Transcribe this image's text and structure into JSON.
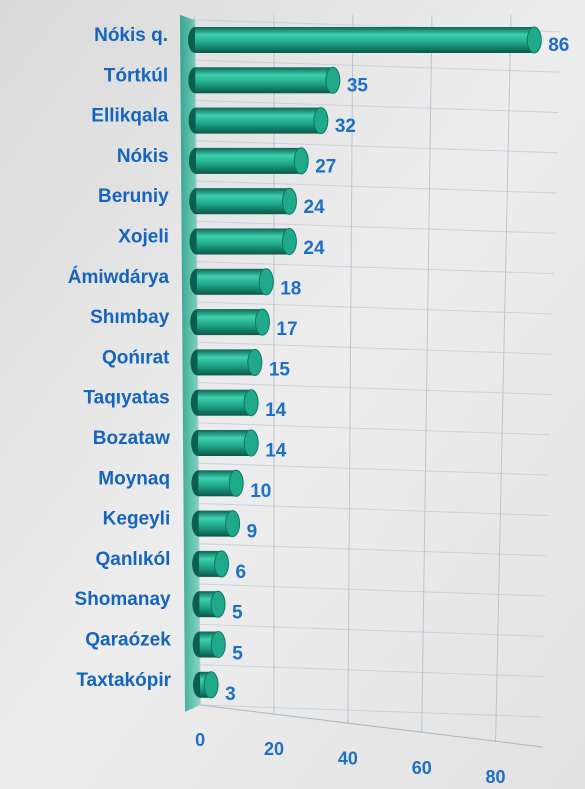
{
  "chart_data": {
    "type": "bar",
    "orientation": "horizontal",
    "categories": [
      "Nókis q.",
      "Tórtkúl",
      "Ellikqala",
      "Nókis",
      "Beruniy",
      "Xojeli",
      "Ámiwdárya",
      "Shımbay",
      "Qońırat",
      "Taqıyatas",
      "Bozataw",
      "Moynaq",
      "Kegeyli",
      "Qanlıkól",
      "Shomanay",
      "Qaraózek",
      "Taxtakópir"
    ],
    "values": [
      86,
      35,
      32,
      27,
      24,
      24,
      18,
      17,
      15,
      14,
      14,
      10,
      9,
      6,
      5,
      5,
      3
    ],
    "color": "#1fa98a",
    "xlim": [
      0,
      90
    ],
    "xticks": [
      0,
      20,
      40,
      60,
      80
    ],
    "grid": true
  }
}
